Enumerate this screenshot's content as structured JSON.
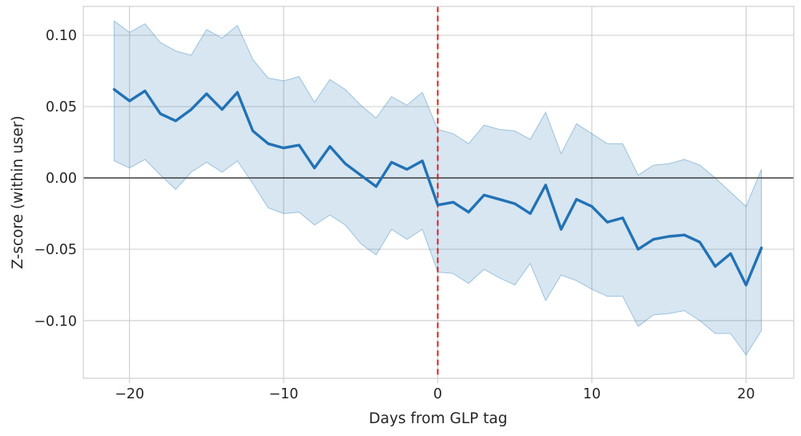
{
  "chart_data": {
    "type": "line",
    "title": "",
    "xlabel": "Days from GLP tag",
    "ylabel": "Z-score (within user)",
    "x": [
      -21,
      -20,
      -19,
      -18,
      -17,
      -16,
      -15,
      -14,
      -13,
      -12,
      -11,
      -10,
      -9,
      -8,
      -7,
      -6,
      -5,
      -4,
      -3,
      -2,
      -1,
      0,
      1,
      2,
      3,
      4,
      5,
      6,
      7,
      8,
      9,
      10,
      11,
      12,
      13,
      14,
      15,
      16,
      17,
      18,
      19,
      20,
      21
    ],
    "series": [
      {
        "name": "mean-z-score",
        "values": [
          0.062,
          0.054,
          0.061,
          0.045,
          0.04,
          0.048,
          0.059,
          0.048,
          0.06,
          0.033,
          0.024,
          0.021,
          0.023,
          0.007,
          0.022,
          0.01,
          0.002,
          -0.006,
          0.011,
          0.006,
          0.012,
          -0.019,
          -0.017,
          -0.024,
          -0.012,
          -0.015,
          -0.018,
          -0.025,
          -0.005,
          -0.036,
          -0.015,
          -0.02,
          -0.031,
          -0.028,
          -0.05,
          -0.043,
          -0.041,
          -0.04,
          -0.045,
          -0.062,
          -0.053,
          -0.075,
          -0.049
        ]
      },
      {
        "name": "ci-upper",
        "values": [
          0.11,
          0.102,
          0.108,
          0.095,
          0.089,
          0.086,
          0.104,
          0.098,
          0.107,
          0.083,
          0.07,
          0.068,
          0.071,
          0.053,
          0.069,
          0.062,
          0.051,
          0.042,
          0.057,
          0.051,
          0.06,
          0.034,
          0.031,
          0.024,
          0.037,
          0.034,
          0.033,
          0.027,
          0.046,
          0.017,
          0.038,
          0.031,
          0.024,
          0.024,
          0.002,
          0.009,
          0.01,
          0.013,
          0.009,
          0.0,
          -0.01,
          -0.02,
          0.006
        ]
      },
      {
        "name": "ci-lower",
        "values": [
          0.012,
          0.007,
          0.013,
          0.002,
          -0.008,
          0.004,
          0.011,
          0.004,
          0.012,
          -0.004,
          -0.021,
          -0.025,
          -0.024,
          -0.033,
          -0.026,
          -0.033,
          -0.046,
          -0.054,
          -0.036,
          -0.043,
          -0.036,
          -0.066,
          -0.067,
          -0.074,
          -0.064,
          -0.07,
          -0.075,
          -0.06,
          -0.086,
          -0.068,
          -0.072,
          -0.078,
          -0.083,
          -0.083,
          -0.104,
          -0.096,
          -0.095,
          -0.093,
          -0.1,
          -0.109,
          -0.109,
          -0.124,
          -0.107
        ]
      }
    ],
    "x_ticks": [
      -20,
      -10,
      0,
      10,
      20
    ],
    "x_tick_labels": [
      "−20",
      "−10",
      "0",
      "10",
      "20"
    ],
    "y_ticks": [
      0.1,
      0.05,
      0.0,
      -0.05,
      -0.1
    ],
    "y_tick_labels": [
      "0.10",
      "0.05",
      "0.00",
      "−0.05",
      "−0.10"
    ],
    "xlim": [
      -23.0,
      23.1
    ],
    "ylim": [
      -0.1404,
      0.1202
    ],
    "grid": true,
    "legend": "none",
    "reference_lines": {
      "vline_x": 0,
      "hline_y": 0
    },
    "colors": {
      "line": "#2272b5",
      "band": "#1f77b4",
      "band_opacity": 0.18,
      "band_edge_opacity": 0.38,
      "vline": "#e01313",
      "hline": "#3b3b3b",
      "grid": "#cccccc",
      "spine": "#cfcfcf",
      "text": "#262626"
    }
  }
}
